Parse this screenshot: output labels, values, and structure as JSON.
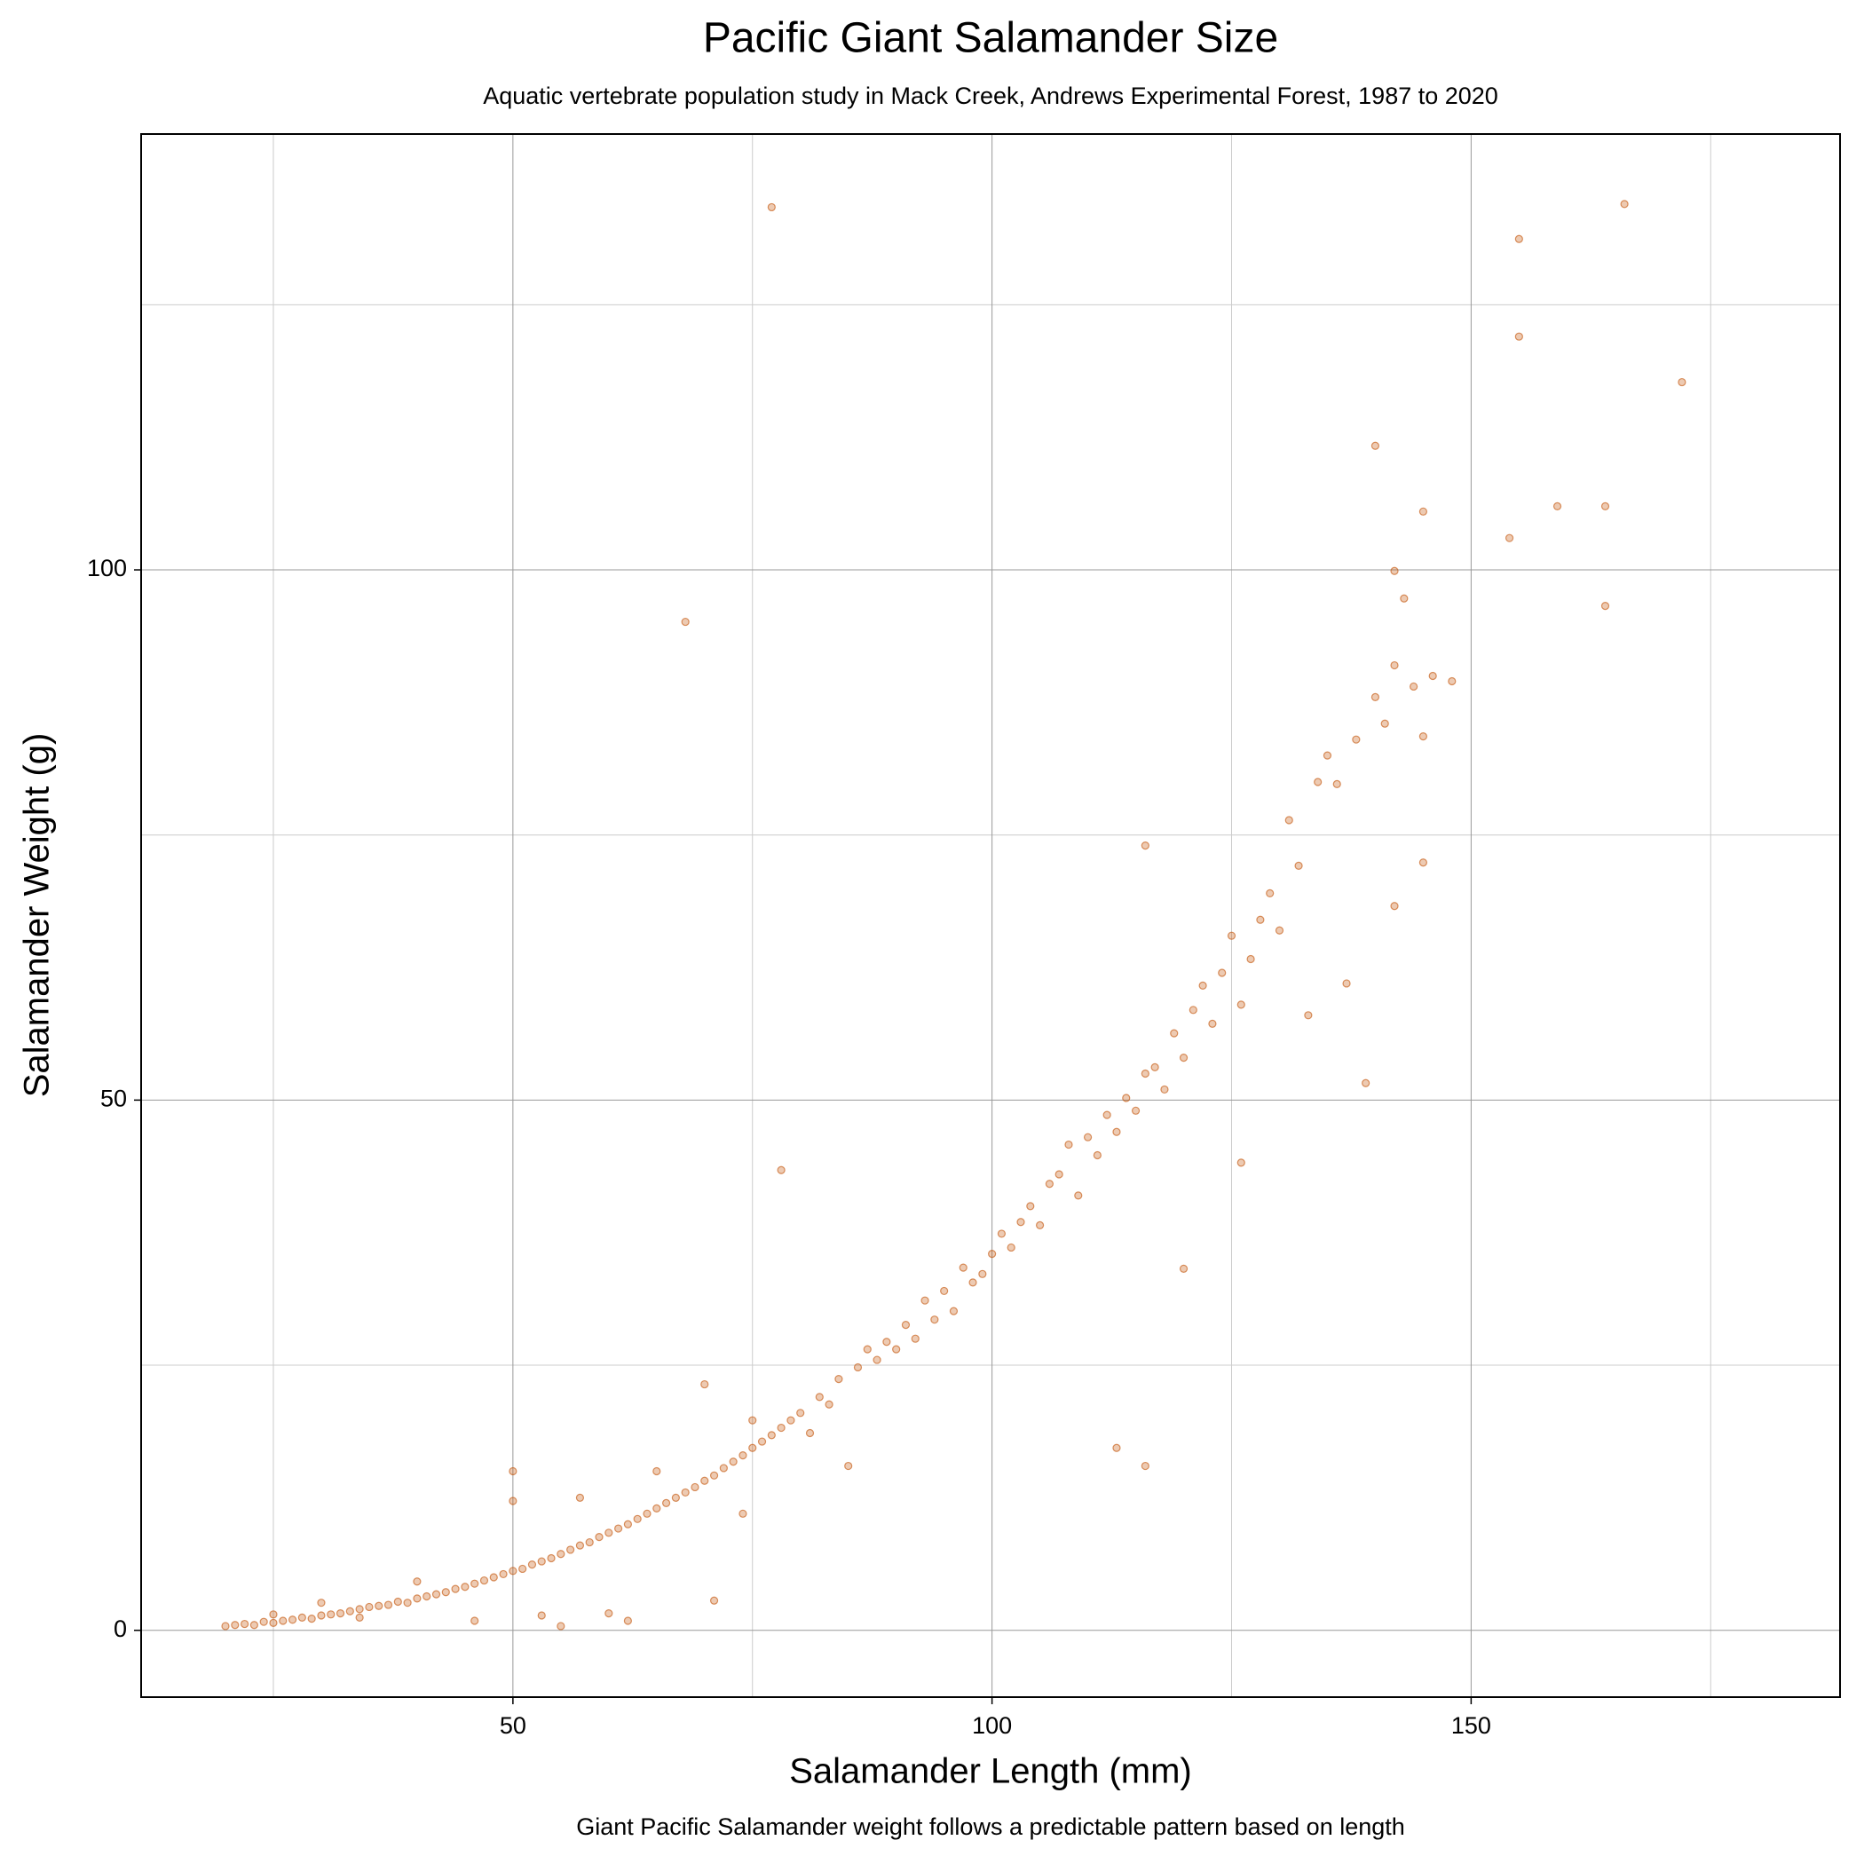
{
  "chart_data": {
    "type": "scatter",
    "title": "Pacific Giant Salamander Size",
    "subtitle": "Aquatic vertebrate population study in Mack Creek, Andrews Experimental Forest, 1987 to 2020",
    "caption": "Giant Pacific Salamander weight follows a predictable pattern based on length",
    "xlabel": "Salamander Length (mm)",
    "ylabel": "Salamander Weight (g)",
    "color": "#c24f00",
    "marker_opacity": 0.3,
    "grid": true,
    "xlim": [
      11.2,
      188.5
    ],
    "ylim": [
      -6.3,
      141.1
    ],
    "xticks": [
      50,
      100,
      150
    ],
    "yticks": [
      0,
      50,
      100
    ],
    "x_minor_ticks": [
      25,
      75,
      125,
      175
    ],
    "y_minor_ticks": [
      25,
      75,
      125
    ],
    "x": [
      20,
      21,
      22,
      23,
      24,
      25,
      25,
      26,
      27,
      28,
      29,
      30,
      30,
      31,
      32,
      33,
      34,
      34,
      35,
      36,
      37,
      38,
      39,
      40,
      40,
      41,
      42,
      43,
      44,
      45,
      46,
      46,
      47,
      48,
      49,
      50,
      50,
      50,
      51,
      52,
      53,
      53,
      54,
      55,
      55,
      56,
      57,
      57,
      58,
      59,
      60,
      60,
      61,
      62,
      62,
      63,
      64,
      65,
      65,
      66,
      67,
      68,
      69,
      70,
      70,
      71,
      71,
      72,
      73,
      74,
      74,
      75,
      75,
      76,
      77,
      78,
      79,
      80,
      81,
      82,
      83,
      84,
      85,
      86,
      87,
      88,
      89,
      90,
      91,
      92,
      93,
      94,
      95,
      96,
      97,
      98,
      99,
      100,
      101,
      102,
      103,
      104,
      105,
      106,
      107,
      108,
      109,
      110,
      111,
      112,
      113,
      114,
      115,
      116,
      117,
      118,
      119,
      120,
      121,
      122,
      123,
      124,
      125,
      126,
      127,
      128,
      129,
      130,
      131,
      132,
      133,
      134,
      135,
      136,
      137,
      138,
      140,
      141,
      142,
      144,
      145,
      146,
      148,
      145,
      142,
      77,
      68,
      78,
      113,
      116,
      155,
      155,
      166,
      172,
      140,
      145,
      159,
      164,
      154,
      164,
      142,
      143,
      116,
      139,
      120,
      126
    ],
    "y": [
      0.4,
      0.5,
      0.6,
      0.5,
      0.8,
      0.7,
      1.5,
      0.9,
      1.0,
      1.2,
      1.1,
      1.4,
      2.6,
      1.5,
      1.6,
      1.8,
      2.0,
      1.2,
      2.2,
      2.3,
      2.4,
      2.7,
      2.6,
      3.0,
      4.6,
      3.2,
      3.4,
      3.6,
      3.9,
      4.1,
      4.4,
      0.9,
      4.7,
      5.0,
      5.3,
      5.6,
      12.2,
      15.0,
      5.8,
      6.2,
      6.5,
      1.4,
      6.8,
      7.2,
      0.4,
      7.6,
      8.0,
      12.5,
      8.3,
      8.8,
      9.2,
      1.6,
      9.6,
      10.0,
      0.9,
      10.5,
      11.0,
      11.5,
      15.0,
      12.0,
      12.5,
      13.0,
      13.5,
      14.1,
      23.2,
      14.6,
      2.8,
      15.3,
      15.9,
      16.5,
      11.0,
      17.2,
      19.8,
      17.8,
      18.4,
      19.1,
      19.8,
      20.5,
      18.6,
      22.0,
      21.3,
      23.7,
      15.5,
      24.8,
      26.5,
      25.5,
      27.2,
      26.5,
      28.8,
      27.5,
      31.1,
      29.3,
      32.0,
      30.1,
      34.2,
      32.8,
      33.6,
      35.5,
      37.4,
      36.1,
      38.5,
      40.0,
      38.2,
      42.1,
      43.0,
      45.8,
      41.0,
      46.5,
      44.8,
      48.6,
      47.0,
      50.2,
      49.0,
      52.5,
      53.1,
      51.0,
      56.3,
      54.0,
      58.5,
      60.8,
      57.2,
      62.0,
      65.5,
      59.0,
      63.3,
      67.0,
      69.5,
      66.0,
      76.4,
      72.1,
      58.0,
      80.0,
      82.5,
      79.8,
      61.0,
      84.0,
      88.0,
      85.5,
      91.0,
      89.0,
      84.3,
      90.0,
      89.5,
      72.4,
      68.3,
      134.2,
      95.1,
      43.4,
      17.2,
      15.5,
      131.2,
      122.0,
      134.5,
      117.7,
      111.7,
      105.5,
      106.0,
      106.0,
      103.0,
      96.6,
      99.9,
      97.3,
      74.0,
      51.6,
      34.1,
      44.1
    ]
  }
}
